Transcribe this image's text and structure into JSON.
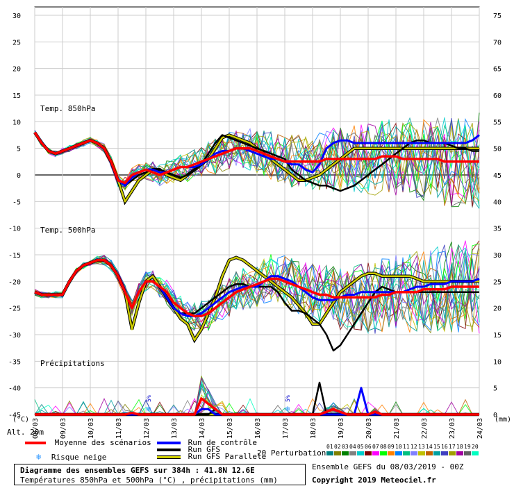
{
  "chart_data": {
    "type": "line",
    "left_unit": "(°C)",
    "right_unit": "(mm)",
    "alt_label": "Alt. 20m",
    "x_dates": [
      "08/03",
      "09/03",
      "10/03",
      "11/03",
      "12/03",
      "13/03",
      "14/03",
      "15/03",
      "16/03",
      "17/03",
      "18/03",
      "19/03",
      "20/03",
      "21/03",
      "22/03",
      "23/03",
      "24/03"
    ],
    "y_left_ticks": [
      30,
      25,
      20,
      15,
      10,
      5,
      0,
      -5,
      -10,
      -15,
      -20,
      -25,
      -30,
      -35,
      -40,
      -45
    ],
    "y_right_ticks": [
      75,
      70,
      65,
      60,
      55,
      50,
      45,
      40,
      35,
      30,
      25,
      20,
      15,
      10,
      5,
      0
    ],
    "ylim_left": [
      -45,
      30
    ],
    "ylim_right": [
      0,
      75
    ],
    "grid": true,
    "panel_labels": {
      "t850": "Temp. 850hPa",
      "t500": "Temp. 500hPa",
      "precip": "Précipitations"
    },
    "snow_markers": [
      {
        "date_index": 4,
        "label": "5%"
      },
      {
        "date_index": 9,
        "label": "5%"
      }
    ],
    "series": {
      "mean": {
        "name": "Moyenne des scénarios",
        "color": "#ff0000",
        "t850": [
          8,
          6,
          4.5,
          4,
          4.5,
          5,
          5.5,
          6,
          6.5,
          6,
          5,
          2.5,
          -1,
          -1.5,
          0,
          0.5,
          1,
          0.5,
          0,
          0.5,
          1,
          1.5,
          1.5,
          2,
          2.5,
          3,
          3.5,
          4,
          4.5,
          5,
          5,
          5,
          4.5,
          4,
          3.5,
          3,
          2.5,
          2.5,
          2.5,
          2.5,
          2.5,
          2.5,
          3,
          3,
          3,
          3,
          3,
          3,
          3,
          3,
          3.5,
          3.5,
          3.5,
          3,
          3,
          3,
          3,
          3,
          3,
          2.5,
          2.5,
          2.5,
          2.5,
          2.5,
          2.5
        ],
        "t500": [
          -22,
          -22.5,
          -22.5,
          -22.5,
          -22.5,
          -20,
          -18,
          -17,
          -16.5,
          -16,
          -16,
          -17,
          -19,
          -22,
          -25,
          -22,
          -20,
          -20,
          -21,
          -22,
          -24,
          -25,
          -26,
          -26.5,
          -26.5,
          -26,
          -25,
          -24,
          -23,
          -22,
          -21.5,
          -21,
          -20.5,
          -20,
          -19.5,
          -19.5,
          -20,
          -20.5,
          -21,
          -21.5,
          -22,
          -22.5,
          -22.5,
          -23,
          -23,
          -23,
          -23,
          -23,
          -23,
          -23,
          -22.5,
          -22.5,
          -22,
          -22,
          -22,
          -22,
          -21.5,
          -21.5,
          -21.5,
          -21.5,
          -21,
          -21,
          -21,
          -21,
          -21
        ],
        "precip": [
          0,
          0,
          0,
          0,
          0,
          0,
          0,
          0,
          0,
          0,
          0,
          0,
          0,
          0,
          0.3,
          0,
          0,
          0,
          0,
          0,
          0,
          0,
          0,
          0,
          3,
          2,
          1,
          0,
          0,
          0,
          0,
          0,
          0,
          0,
          0,
          0,
          0,
          0,
          0,
          0,
          0,
          0,
          0.5,
          1,
          0.5,
          0,
          0,
          0,
          0,
          0.5,
          0,
          0,
          0,
          0,
          0,
          0,
          0,
          0,
          0,
          0,
          0,
          0,
          0,
          0,
          0
        ]
      },
      "control": {
        "name": "Run de contrôle",
        "color": "#0000ff",
        "t850": [
          8,
          6,
          4.5,
          4,
          4.5,
          5,
          5.5,
          6,
          6.5,
          6,
          5,
          2.5,
          -1,
          -2,
          -0.5,
          0.5,
          1,
          1,
          0.5,
          0.5,
          1,
          1.5,
          1.5,
          1.5,
          2,
          3,
          4,
          4.5,
          4.5,
          5,
          5,
          4.5,
          4,
          3.5,
          3,
          3,
          2.5,
          2,
          2,
          1,
          0.5,
          2,
          5,
          6,
          6.5,
          6.5,
          6,
          6,
          6,
          6,
          6,
          6,
          6,
          6,
          6,
          6,
          6,
          6,
          6,
          6,
          6,
          6,
          6,
          6.5,
          7.5
        ],
        "t500": [
          -22,
          -22.5,
          -22.5,
          -22.5,
          -22.5,
          -20,
          -18,
          -17,
          -16.5,
          -16,
          -16,
          -17,
          -19,
          -22,
          -25,
          -22,
          -20,
          -20,
          -21,
          -23,
          -25,
          -26,
          -26.5,
          -26.5,
          -26,
          -25,
          -24,
          -23,
          -22,
          -21.5,
          -21,
          -21,
          -21,
          -20,
          -19,
          -19,
          -19.5,
          -20,
          -21,
          -22,
          -23,
          -23.5,
          -23.5,
          -23.5,
          -23,
          -22.5,
          -22.5,
          -22,
          -22,
          -22,
          -22,
          -22,
          -22,
          -22,
          -21.5,
          -21,
          -21,
          -20.5,
          -20.5,
          -20.5,
          -20,
          -20,
          -20,
          -20,
          -19.5
        ],
        "precip": [
          0,
          0,
          0,
          0,
          0,
          0,
          0,
          0,
          0,
          0,
          0,
          0,
          0,
          0,
          0,
          0,
          0,
          0,
          0,
          0,
          0,
          0,
          0,
          0,
          1,
          1,
          0,
          0,
          0,
          0,
          0,
          0,
          0,
          0,
          0,
          0,
          0,
          0,
          0,
          0,
          0,
          0,
          0,
          0,
          0,
          0,
          0,
          5,
          0,
          0,
          0,
          0,
          0,
          0,
          0,
          0,
          0,
          0,
          0,
          0,
          0,
          0,
          0,
          0,
          0
        ]
      },
      "gfs": {
        "name": "Run GFS",
        "color": "#000000",
        "t850": [
          8,
          6,
          4.5,
          4,
          4.5,
          5,
          5.5,
          6,
          6.5,
          6,
          5,
          2.5,
          -1,
          -2,
          -1,
          0,
          0.5,
          1,
          1,
          0.5,
          0,
          -0.5,
          0,
          1,
          2,
          4,
          6,
          7.5,
          7,
          6.5,
          6,
          5.5,
          5,
          4.5,
          4,
          3.5,
          3,
          1,
          0,
          -1,
          -1.5,
          -2,
          -2,
          -2.5,
          -3,
          -2.5,
          -2,
          -1,
          0,
          1,
          2,
          3,
          4,
          5,
          6,
          6.5,
          6.5,
          6,
          6,
          6,
          5.5,
          5,
          5,
          4.5,
          4.5
        ],
        "t500": [
          -22,
          -22.5,
          -22.5,
          -22.5,
          -22.5,
          -20,
          -18,
          -17,
          -16.5,
          -16,
          -16,
          -17,
          -19,
          -22,
          -25,
          -22,
          -20,
          -20,
          -21,
          -23,
          -25,
          -26,
          -26,
          -26,
          -25,
          -24,
          -23,
          -22,
          -21,
          -20.5,
          -20.5,
          -21,
          -21,
          -21,
          -21,
          -22,
          -24,
          -25.5,
          -25.5,
          -26,
          -27,
          -28,
          -30,
          -33,
          -32,
          -30,
          -28,
          -26,
          -24,
          -22,
          -21,
          -21.5,
          -22,
          -22,
          -22,
          -22,
          -22,
          -22,
          -22,
          -22,
          -22,
          -22,
          -22,
          -22,
          -22
        ],
        "precip": [
          0,
          0,
          0,
          0,
          0,
          0,
          0,
          0,
          0,
          0,
          0,
          0,
          0,
          0,
          0,
          0,
          0,
          0,
          0,
          0,
          0,
          0,
          0,
          0,
          0,
          0,
          1,
          0,
          0,
          0,
          0,
          0,
          0,
          0,
          0,
          0,
          0,
          0,
          0,
          0,
          0,
          6,
          0,
          0,
          0,
          0,
          0,
          0,
          0,
          0,
          0,
          0,
          0,
          0,
          0,
          0,
          0,
          0,
          0,
          0,
          0,
          0,
          0,
          0,
          0
        ]
      },
      "gfs_parallel": {
        "name": "Run GFS Parallele",
        "color": "#cccc00",
        "t850": [
          8,
          6,
          4.5,
          4,
          4.5,
          5,
          5.5,
          6,
          6.5,
          6,
          5,
          2.5,
          -1,
          -5,
          -3,
          -1,
          0,
          1,
          1,
          0,
          -0.5,
          -1,
          0,
          1,
          2,
          3,
          5,
          7,
          7.5,
          7,
          6.5,
          6,
          5,
          4,
          3,
          2,
          1,
          0,
          -1,
          -1,
          -0.5,
          0,
          1,
          2,
          3,
          4,
          5,
          5,
          5,
          5,
          5,
          5,
          5,
          5,
          5,
          5,
          5,
          5,
          5,
          5,
          5,
          5,
          5,
          5,
          5
        ],
        "t500": [
          -22,
          -22.5,
          -22.5,
          -22.5,
          -22.5,
          -20,
          -18,
          -17,
          -16.5,
          -16,
          -16,
          -17,
          -19,
          -22,
          -29,
          -24,
          -20,
          -19,
          -21,
          -23,
          -25,
          -27,
          -28,
          -31,
          -29,
          -26,
          -23,
          -19,
          -16,
          -15.5,
          -16,
          -17,
          -18,
          -19,
          -20,
          -21,
          -22,
          -23,
          -24.5,
          -26,
          -28,
          -28,
          -26,
          -24,
          -22,
          -21,
          -20,
          -19,
          -18.5,
          -18.5,
          -19,
          -19,
          -19,
          -19,
          -19,
          -19.5,
          -20,
          -20,
          -20,
          -20,
          -20,
          -20,
          -20,
          -20,
          -20
        ],
        "precip": [
          0,
          0,
          0,
          0,
          0,
          0,
          0,
          0,
          0,
          0,
          0,
          0,
          0,
          0,
          0,
          0,
          0,
          0,
          0,
          0,
          0,
          0,
          0,
          0,
          0,
          0,
          0,
          0,
          0,
          0,
          0,
          0,
          0,
          0,
          0,
          0,
          0,
          0,
          0,
          0,
          0,
          0,
          0,
          0,
          0,
          0,
          0,
          0,
          0,
          0,
          0,
          0,
          0,
          0,
          0,
          0,
          0,
          0,
          0,
          0,
          0,
          0,
          0,
          0,
          0
        ]
      }
    },
    "perturbations": {
      "label": "20 Perturbations",
      "ids": [
        "01",
        "02",
        "03",
        "04",
        "05",
        "06",
        "07",
        "08",
        "09",
        "10",
        "11",
        "12",
        "13",
        "14",
        "15",
        "16",
        "17",
        "18",
        "19",
        "20"
      ],
      "colors": [
        "#008080",
        "#808000",
        "#008000",
        "#808080",
        "#00cccc",
        "#800000",
        "#ff00ff",
        "#00ff00",
        "#ff8000",
        "#0080ff",
        "#00c080",
        "#8080ff",
        "#c0c000",
        "#c06000",
        "#00a0a0",
        "#4040c0",
        "#a0a000",
        "#a000a0",
        "#606060",
        "#00ffc0"
      ]
    }
  },
  "legend": {
    "snow_label": "Risque neige",
    "info_line1": "Ensemble GEFS du 08/03/2019 - 00Z",
    "copyright": "Copyright 2019 Meteociel.fr"
  },
  "info_box": {
    "title": "Diagramme des ensembles GEFS sur 384h : 41.8N 12.6E",
    "subtitle": "Températures 850hPa et 500hPa (°C) , précipitations (mm)"
  }
}
